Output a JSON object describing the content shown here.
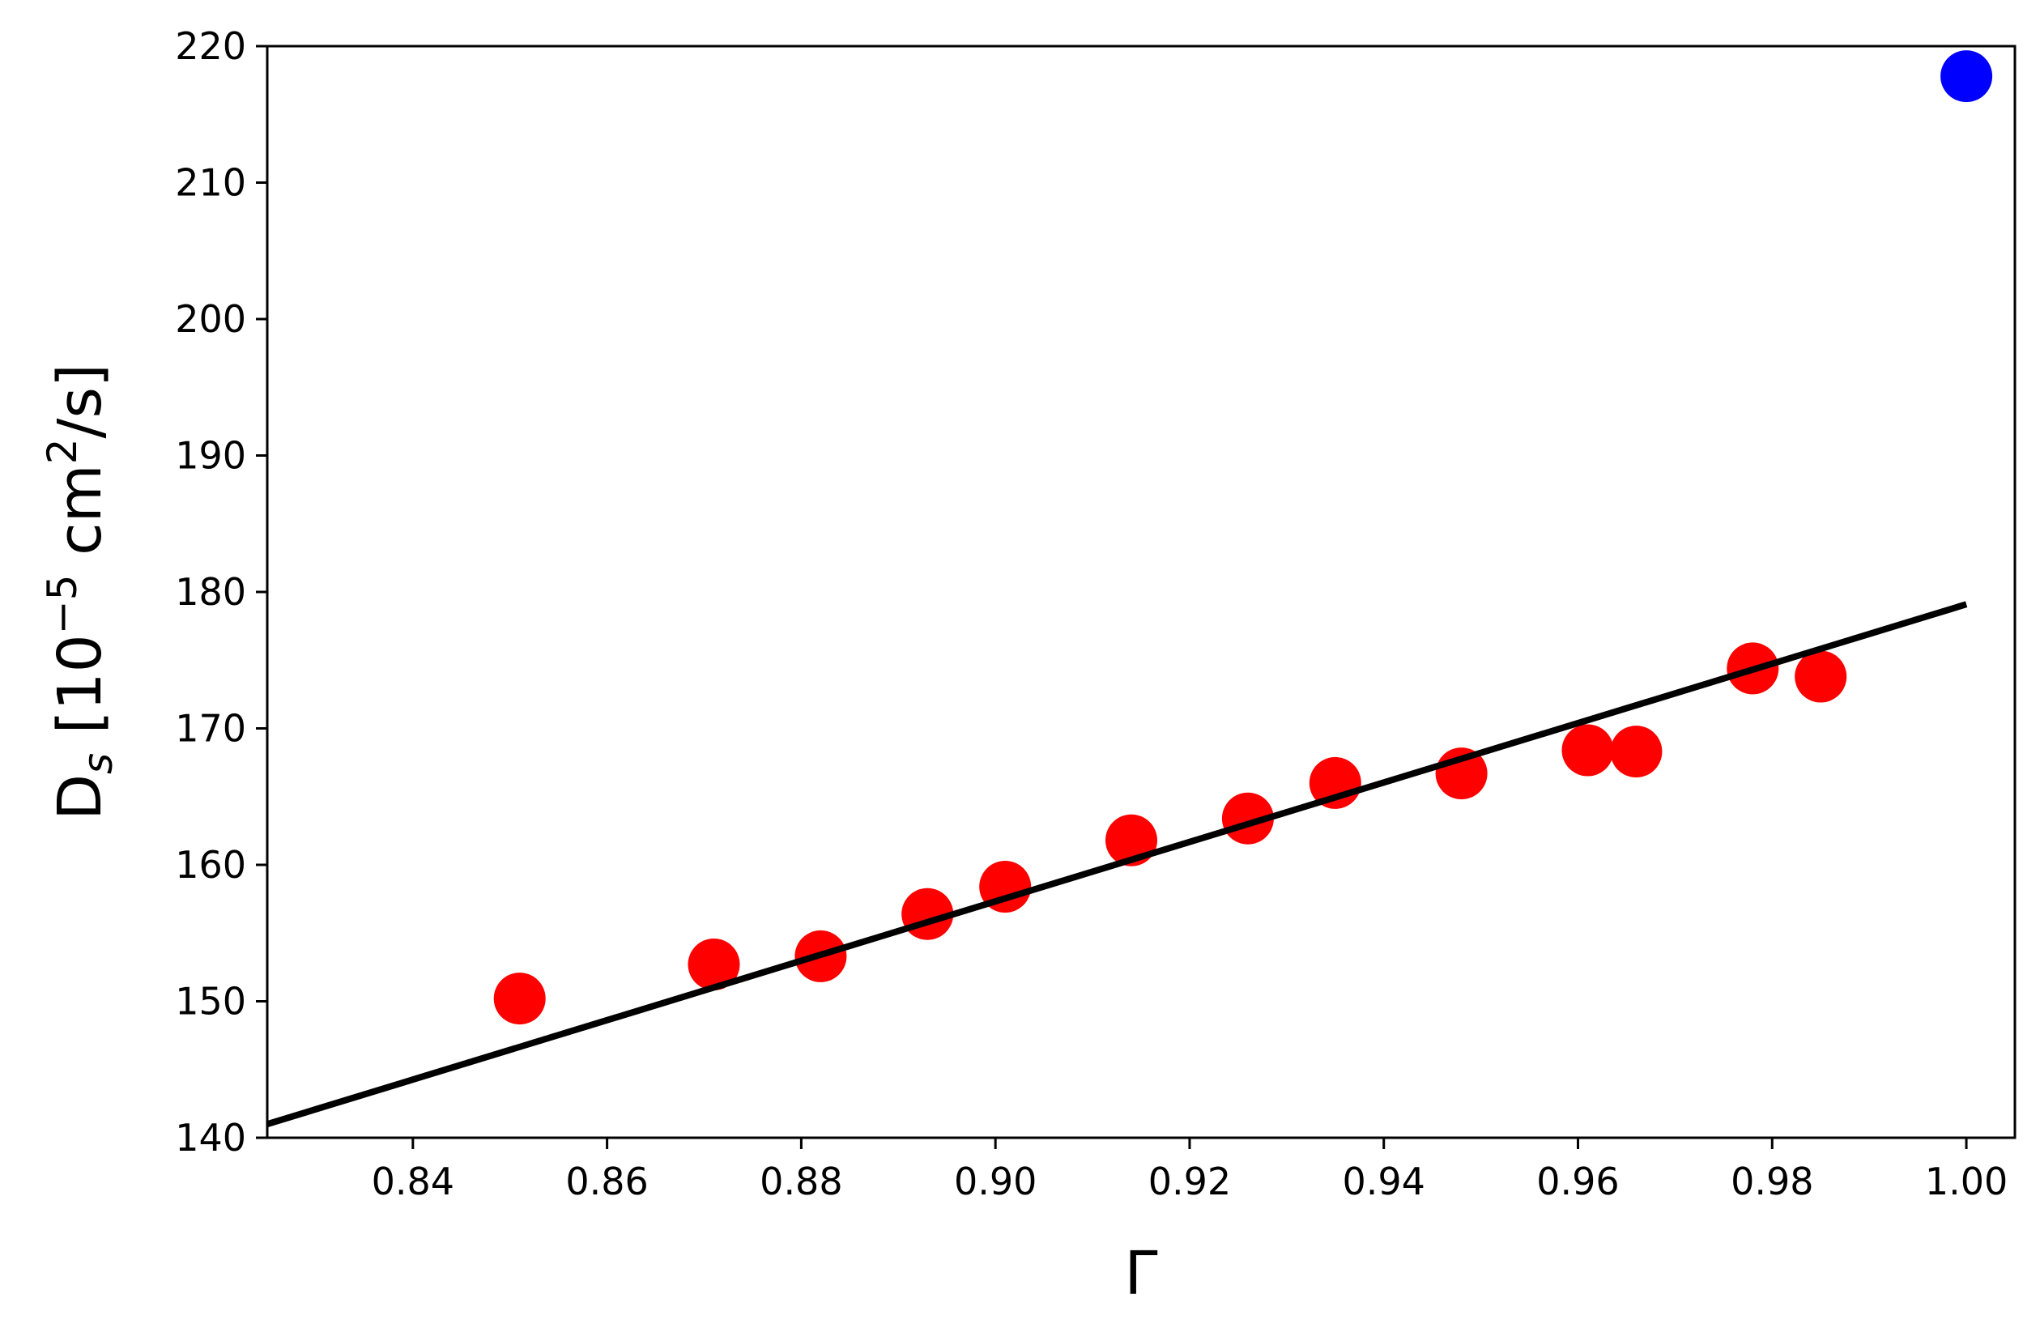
{
  "chart_data": {
    "type": "scatter",
    "title": "",
    "xlabel": "Γ",
    "ylabel": {
      "main": "D",
      "sub": "s",
      "prefix": " [10",
      "exp": "−5",
      "mid": " cm",
      "exp2": "2",
      "suffix": "/s]"
    },
    "xlim": [
      0.825,
      1.005
    ],
    "ylim": [
      140,
      220
    ],
    "xticks": [
      0.84,
      0.86,
      0.88,
      0.9,
      0.92,
      0.94,
      0.96,
      0.98,
      1.0
    ],
    "xtick_labels": [
      "0.84",
      "0.86",
      "0.88",
      "0.90",
      "0.92",
      "0.94",
      "0.96",
      "0.98",
      "1.00"
    ],
    "yticks": [
      140,
      150,
      160,
      170,
      180,
      190,
      200,
      210,
      220
    ],
    "ytick_labels": [
      "140",
      "150",
      "160",
      "170",
      "180",
      "190",
      "200",
      "210",
      "220"
    ],
    "grid": false,
    "series": [
      {
        "kind": "scatter",
        "color": "#ff0000",
        "x": [
          0.851,
          0.871,
          0.882,
          0.893,
          0.901,
          0.914,
          0.926,
          0.935,
          0.948,
          0.961,
          0.966,
          0.978,
          0.985
        ],
        "y": [
          150.2,
          152.7,
          153.3,
          156.4,
          158.4,
          161.8,
          163.4,
          166.0,
          166.7,
          168.4,
          168.3,
          174.4,
          173.8
        ]
      },
      {
        "kind": "scatter",
        "color": "#0000ff",
        "x": [
          1.0
        ],
        "y": [
          217.8
        ]
      },
      {
        "kind": "line",
        "color": "#000000",
        "x": [
          0.825,
          1.0
        ],
        "y": [
          141.0,
          179.1
        ]
      }
    ]
  }
}
